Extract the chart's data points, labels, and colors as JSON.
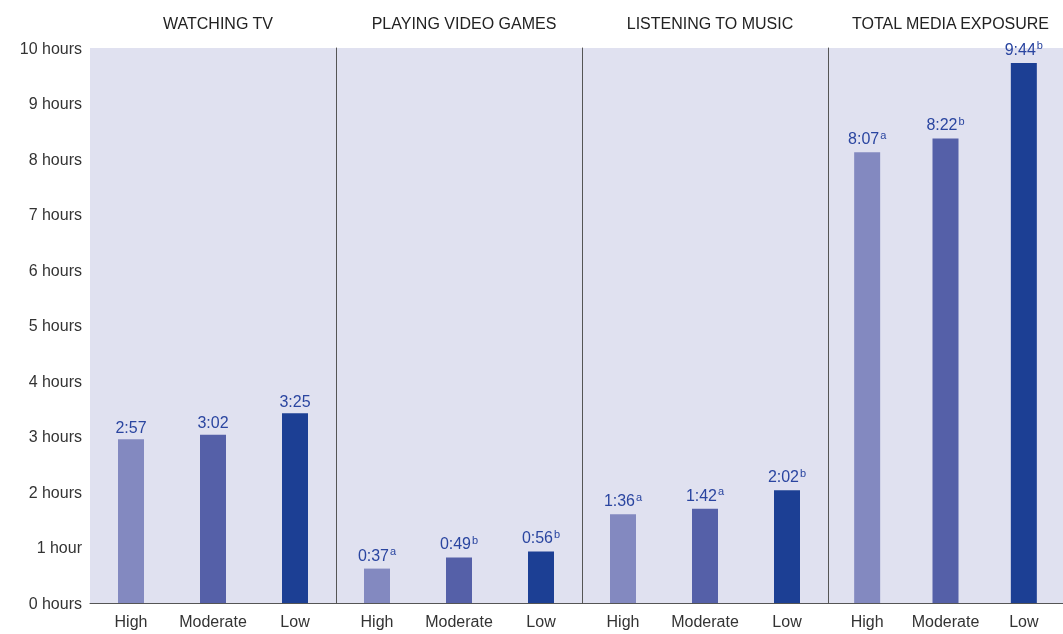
{
  "chart_data": [
    {
      "type": "bar",
      "title": "WATCHING TV",
      "categories": [
        "High",
        "Moderate",
        "Low"
      ],
      "values": [
        2.95,
        3.03,
        3.42
      ],
      "colors": [
        "#8389c0",
        "#5560a8",
        "#1c3f94"
      ],
      "value_labels": [
        "2:57",
        "3:02",
        "3:25"
      ],
      "ylim": [
        0,
        10
      ],
      "yticks": [
        {
          "value": 0,
          "label": "0 hours"
        },
        {
          "value": 1,
          "label": "1 hour"
        },
        {
          "value": 2,
          "label": "2 hours"
        },
        {
          "value": 3,
          "label": "3 hours"
        },
        {
          "value": 4,
          "label": "4 hours"
        },
        {
          "value": 5,
          "label": "5 hours"
        },
        {
          "value": 6,
          "label": "6 hours"
        },
        {
          "value": 7,
          "label": "7 hours"
        },
        {
          "value": 8,
          "label": "8 hours"
        },
        {
          "value": 9,
          "label": "9 hours"
        },
        {
          "value": 10,
          "label": "10 hours"
        }
      ]
    },
    {
      "type": "bar",
      "title": "PLAYING VIDEO GAMES",
      "categories": [
        "High",
        "Moderate",
        "Low"
      ],
      "values": [
        0.62,
        0.82,
        0.93
      ],
      "colors": [
        "#8389c0",
        "#5560a8",
        "#1c3f94"
      ],
      "value_labels": [
        "0:37$^{a}$",
        "0:49$^{b}$",
        "0:56$^{b}$"
      ],
      "ylim": [
        0,
        10
      ],
      "tick_labels": "x"
    },
    {
      "type": "bar",
      "title": "LISTENING TO MUSIC",
      "categories": [
        "High",
        "Moderate",
        "Low"
      ],
      "values": [
        1.6,
        1.7,
        2.03
      ],
      "colors": [
        "#8389c0",
        "#5560a8",
        "#1c3f94"
      ],
      "value_labels": [
        "1:36$^{a}$",
        "1:42$^{a}$",
        "2:02$^{b}$"
      ],
      "ylim": [
        0,
        10
      ],
      "tick_labels": "x"
    },
    {
      "type": "bar",
      "title": "TOTAL MEDIA EXPOSURE",
      "categories": [
        "High",
        "Moderate",
        "Low"
      ],
      "values": [
        8.12,
        8.37,
        9.73
      ],
      "colors": [
        "#8389c0",
        "#5560a8",
        "#1c3f94"
      ],
      "value_labels": [
        "8:07$^{a}$",
        "8:22$^{b}$",
        "9:44$^{b}$"
      ],
      "ylim": [
        0,
        10
      ],
      "tick_labels": "x"
    }
  ]
}
